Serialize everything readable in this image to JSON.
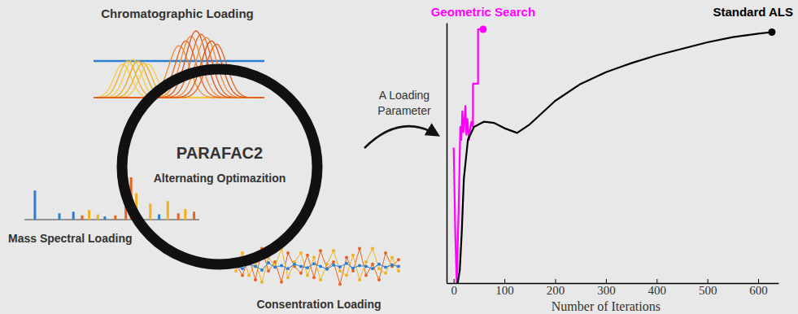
{
  "diagram": {
    "center": {
      "title": "PARAFAC2",
      "subtitle": "Alternating Optimazition"
    },
    "chromatographic_loading": {
      "label": "Chromatographic Loading",
      "baseline": {
        "level": 0.55,
        "color": "#2a7fd4"
      },
      "peaks": [
        {
          "center": 17,
          "height": 0.5,
          "width": 5,
          "color": "#f7c948"
        },
        {
          "center": 20,
          "height": 0.55,
          "width": 5,
          "color": "#f2b01e"
        },
        {
          "center": 23,
          "height": 0.57,
          "width": 5,
          "color": "#f7c948"
        },
        {
          "center": 26,
          "height": 0.55,
          "width": 5,
          "color": "#eaa51a"
        },
        {
          "center": 29,
          "height": 0.52,
          "width": 5,
          "color": "#f2b01e"
        },
        {
          "center": 32,
          "height": 0.5,
          "width": 5,
          "color": "#f7c948"
        },
        {
          "center": 50,
          "height": 0.78,
          "width": 6,
          "color": "#f08a30"
        },
        {
          "center": 54,
          "height": 0.85,
          "width": 6,
          "color": "#e8641e"
        },
        {
          "center": 57,
          "height": 0.92,
          "width": 6,
          "color": "#f08a30"
        },
        {
          "center": 60,
          "height": 1.0,
          "width": 6,
          "color": "#d9531a"
        },
        {
          "center": 63,
          "height": 0.95,
          "width": 6,
          "color": "#e8641e"
        },
        {
          "center": 66,
          "height": 0.9,
          "width": 6,
          "color": "#f08a30"
        },
        {
          "center": 69,
          "height": 0.85,
          "width": 6,
          "color": "#d9531a"
        },
        {
          "center": 72,
          "height": 0.8,
          "width": 6,
          "color": "#e8641e"
        }
      ]
    },
    "mass_spectral_loading": {
      "label": "Mass Spectral Loading",
      "bars": [
        {
          "position": 6,
          "height": 0.55,
          "color": "#2a7fd4"
        },
        {
          "position": 20,
          "height": 0.12,
          "color": "#2a7fd4"
        },
        {
          "position": 28,
          "height": 0.15,
          "color": "#2a7fd4"
        },
        {
          "position": 33,
          "height": 0.08,
          "color": "#e8641e"
        },
        {
          "position": 37,
          "height": 0.18,
          "color": "#f2b01e"
        },
        {
          "position": 42,
          "height": 0.1,
          "color": "#f2b01e"
        },
        {
          "position": 46,
          "height": 0.06,
          "color": "#2a7fd4"
        },
        {
          "position": 52,
          "height": 0.08,
          "color": "#e8641e"
        },
        {
          "position": 58,
          "height": 0.95,
          "color": "#e8641e"
        },
        {
          "position": 61,
          "height": 0.8,
          "color": "#e8641e"
        },
        {
          "position": 64,
          "height": 0.5,
          "color": "#f2b01e"
        },
        {
          "position": 72,
          "height": 0.3,
          "color": "#f2b01e"
        },
        {
          "position": 77,
          "height": 0.1,
          "color": "#2a7fd4"
        },
        {
          "position": 82,
          "height": 0.35,
          "color": "#f2b01e"
        },
        {
          "position": 88,
          "height": 0.12,
          "color": "#e8641e"
        },
        {
          "position": 92,
          "height": 0.2,
          "color": "#f2b01e"
        },
        {
          "position": 97,
          "height": 0.15,
          "color": "#e8641e"
        }
      ]
    },
    "concentration_loading": {
      "label": "Consentration Loading",
      "series": [
        {
          "color": "#e8641e",
          "values": [
            0.55,
            0.3,
            0.7,
            0.2,
            0.9,
            0.4,
            0.6,
            0.15,
            0.8,
            0.5,
            0.35,
            0.75,
            0.25,
            0.85,
            0.45,
            0.6,
            0.1,
            0.7,
            0.4,
            0.9,
            0.3,
            0.55,
            0.2,
            0.8,
            0.5,
            0.65
          ]
        },
        {
          "color": "#f2b01e",
          "values": [
            0.4,
            0.8,
            0.3,
            0.6,
            0.15,
            0.7,
            0.5,
            0.9,
            0.25,
            0.6,
            0.8,
            0.3,
            0.7,
            0.2,
            0.55,
            0.85,
            0.4,
            0.3,
            0.75,
            0.2,
            0.6,
            0.9,
            0.45,
            0.35,
            0.7,
            0.4
          ]
        },
        {
          "color": "#2a7fd4",
          "values": [
            0.5,
            0.45,
            0.55,
            0.5,
            0.42,
            0.58,
            0.48,
            0.52,
            0.45,
            0.55,
            0.5,
            0.47,
            0.56,
            0.5,
            0.44,
            0.53,
            0.49,
            0.57,
            0.46,
            0.52,
            0.5,
            0.45,
            0.55,
            0.48,
            0.53,
            0.5
          ]
        }
      ]
    },
    "arrow_label": [
      "A Loading",
      "Parameter"
    ]
  },
  "chart_data": {
    "type": "line",
    "x_label": "Number of Iterations",
    "xlim": [
      -14,
      640
    ],
    "xticks": [
      0,
      100,
      200,
      300,
      400,
      500,
      600
    ],
    "ylim": [
      0,
      100
    ],
    "yticks": [],
    "tick_labels": "x",
    "grid": false,
    "series": [
      {
        "name": "Geometric Search",
        "color": "#ff00ff",
        "marker": "end",
        "line_style": "solid",
        "x": [
          0,
          3,
          6,
          10,
          13,
          15,
          17,
          19,
          21,
          23,
          25,
          27,
          30,
          33,
          35,
          38,
          38,
          48,
          48,
          58
        ],
        "values": [
          52,
          20,
          0,
          30,
          60,
          55,
          66,
          58,
          62,
          68,
          57,
          63,
          55,
          60,
          62,
          60,
          76.6,
          76.6,
          97.5,
          97.5
        ]
      },
      {
        "name": "Standard ALS",
        "color": "#000000",
        "marker": "end",
        "line_style": "solid",
        "x": [
          8,
          12,
          16,
          20,
          28,
          40,
          60,
          80,
          100,
          125,
          150,
          200,
          250,
          300,
          350,
          400,
          450,
          500,
          550,
          600,
          627
        ],
        "values": [
          0,
          5,
          20,
          40,
          55,
          60,
          62,
          61.5,
          59.5,
          57.7,
          61,
          70,
          76.5,
          81,
          84.5,
          87.5,
          90,
          92.5,
          94.5,
          95.8,
          96.4
        ]
      }
    ]
  }
}
